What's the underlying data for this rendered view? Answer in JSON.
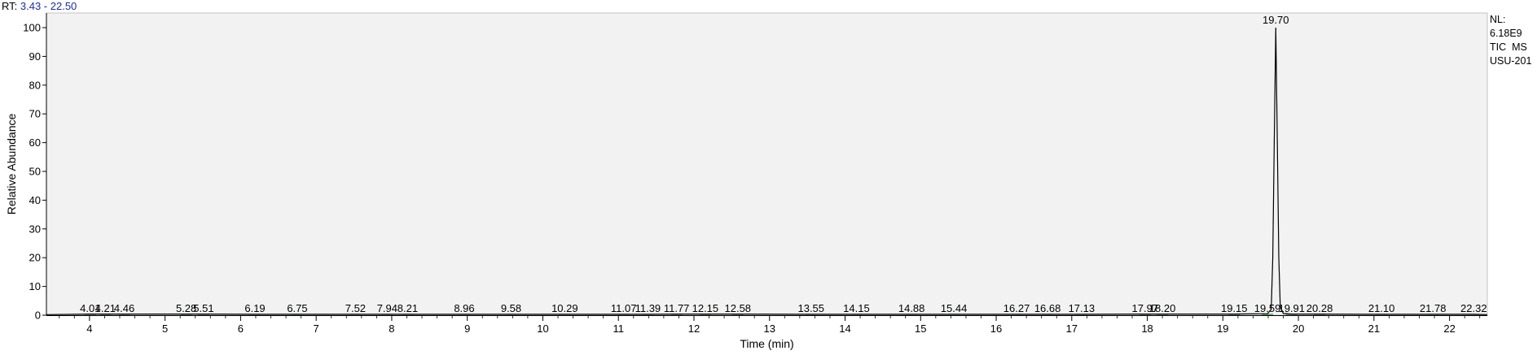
{
  "header": {
    "rt_label": "RT:",
    "rt_range": "3.43 - 22.50"
  },
  "info": {
    "nl_label": "NL:",
    "nl_value": "6.18E9",
    "scan_type": "TIC  MS",
    "sample": "USU-201"
  },
  "colors": {
    "plot_background": "#f2f2f2",
    "trace": "#000000",
    "rt_range_text": "#1a2f9e",
    "baseline_marks": "#2e8b2e"
  },
  "chart_data": {
    "type": "line",
    "title": "",
    "xlabel": "Time (min)",
    "ylabel": "Relative Abundance",
    "xlim": [
      3.43,
      22.5
    ],
    "ylim": [
      0,
      100
    ],
    "x_ticks": [
      4,
      5,
      6,
      7,
      8,
      9,
      10,
      11,
      12,
      13,
      14,
      15,
      16,
      17,
      18,
      19,
      20,
      21,
      22
    ],
    "y_ticks": [
      0,
      10,
      20,
      30,
      40,
      50,
      60,
      70,
      80,
      90,
      100
    ],
    "grid": false,
    "series": [
      {
        "x": [
          3.43,
          4.01,
          4.21,
          4.46,
          5.28,
          5.51,
          6.19,
          6.75,
          7.52,
          7.94,
          8.21,
          8.96,
          9.58,
          10.29,
          11.07,
          11.39,
          11.77,
          12.15,
          12.58,
          13.55,
          14.15,
          14.88,
          15.44,
          16.27,
          16.68,
          17.13,
          17.97,
          18.2,
          19.15,
          19.59,
          19.64,
          19.66,
          19.68,
          19.7,
          19.72,
          19.74,
          19.76,
          19.8,
          19.91,
          20.28,
          21.1,
          21.78,
          22.32,
          22.5
        ],
        "y": [
          0.2,
          0.4,
          0.4,
          0.4,
          0.4,
          0.4,
          0.3,
          0.3,
          0.3,
          0.3,
          0.3,
          0.3,
          0.3,
          0.3,
          0.3,
          0.3,
          0.4,
          0.4,
          0.4,
          0.3,
          0.3,
          0.3,
          0.3,
          0.3,
          0.3,
          0.3,
          0.4,
          0.4,
          0.4,
          0.5,
          2,
          20,
          60,
          100,
          62,
          20,
          3,
          0.6,
          0.4,
          0.4,
          0.3,
          0.3,
          0.3,
          0.2
        ]
      }
    ],
    "peak_labels": [
      {
        "x": 19.7,
        "y": 100,
        "label": "19.70"
      },
      {
        "x": 4.01,
        "y": 0.4,
        "label": "4.01"
      },
      {
        "x": 4.21,
        "y": 0.4,
        "label": "4.21"
      },
      {
        "x": 4.46,
        "y": 0.4,
        "label": "4.46"
      },
      {
        "x": 5.28,
        "y": 0.4,
        "label": "5.28"
      },
      {
        "x": 5.51,
        "y": 0.4,
        "label": "5.51"
      },
      {
        "x": 6.19,
        "y": 0.3,
        "label": "6.19"
      },
      {
        "x": 6.75,
        "y": 0.3,
        "label": "6.75"
      },
      {
        "x": 7.52,
        "y": 0.3,
        "label": "7.52"
      },
      {
        "x": 7.94,
        "y": 0.3,
        "label": "7.94"
      },
      {
        "x": 8.21,
        "y": 0.3,
        "label": "8.21"
      },
      {
        "x": 8.96,
        "y": 0.3,
        "label": "8.96"
      },
      {
        "x": 9.58,
        "y": 0.3,
        "label": "9.58"
      },
      {
        "x": 10.29,
        "y": 0.3,
        "label": "10.29"
      },
      {
        "x": 11.07,
        "y": 0.3,
        "label": "11.07"
      },
      {
        "x": 11.39,
        "y": 0.3,
        "label": "11.39"
      },
      {
        "x": 11.77,
        "y": 0.4,
        "label": "11.77"
      },
      {
        "x": 12.15,
        "y": 0.4,
        "label": "12.15"
      },
      {
        "x": 12.58,
        "y": 0.4,
        "label": "12.58"
      },
      {
        "x": 13.55,
        "y": 0.3,
        "label": "13.55"
      },
      {
        "x": 14.15,
        "y": 0.3,
        "label": "14.15"
      },
      {
        "x": 14.88,
        "y": 0.3,
        "label": "14.88"
      },
      {
        "x": 15.44,
        "y": 0.3,
        "label": "15.44"
      },
      {
        "x": 16.27,
        "y": 0.3,
        "label": "16.27"
      },
      {
        "x": 16.68,
        "y": 0.3,
        "label": "16.68"
      },
      {
        "x": 17.13,
        "y": 0.3,
        "label": "17.13"
      },
      {
        "x": 17.97,
        "y": 0.4,
        "label": "17.97"
      },
      {
        "x": 18.2,
        "y": 0.4,
        "label": "18.20"
      },
      {
        "x": 19.15,
        "y": 0.4,
        "label": "19.15"
      },
      {
        "x": 19.59,
        "y": 0.5,
        "label": "19.59"
      },
      {
        "x": 19.91,
        "y": 0.4,
        "label": "19.91"
      },
      {
        "x": 20.28,
        "y": 0.4,
        "label": "20.28"
      },
      {
        "x": 21.1,
        "y": 0.3,
        "label": "21.10"
      },
      {
        "x": 21.78,
        "y": 0.3,
        "label": "21.78"
      },
      {
        "x": 22.32,
        "y": 0.3,
        "label": "22.32"
      }
    ]
  }
}
